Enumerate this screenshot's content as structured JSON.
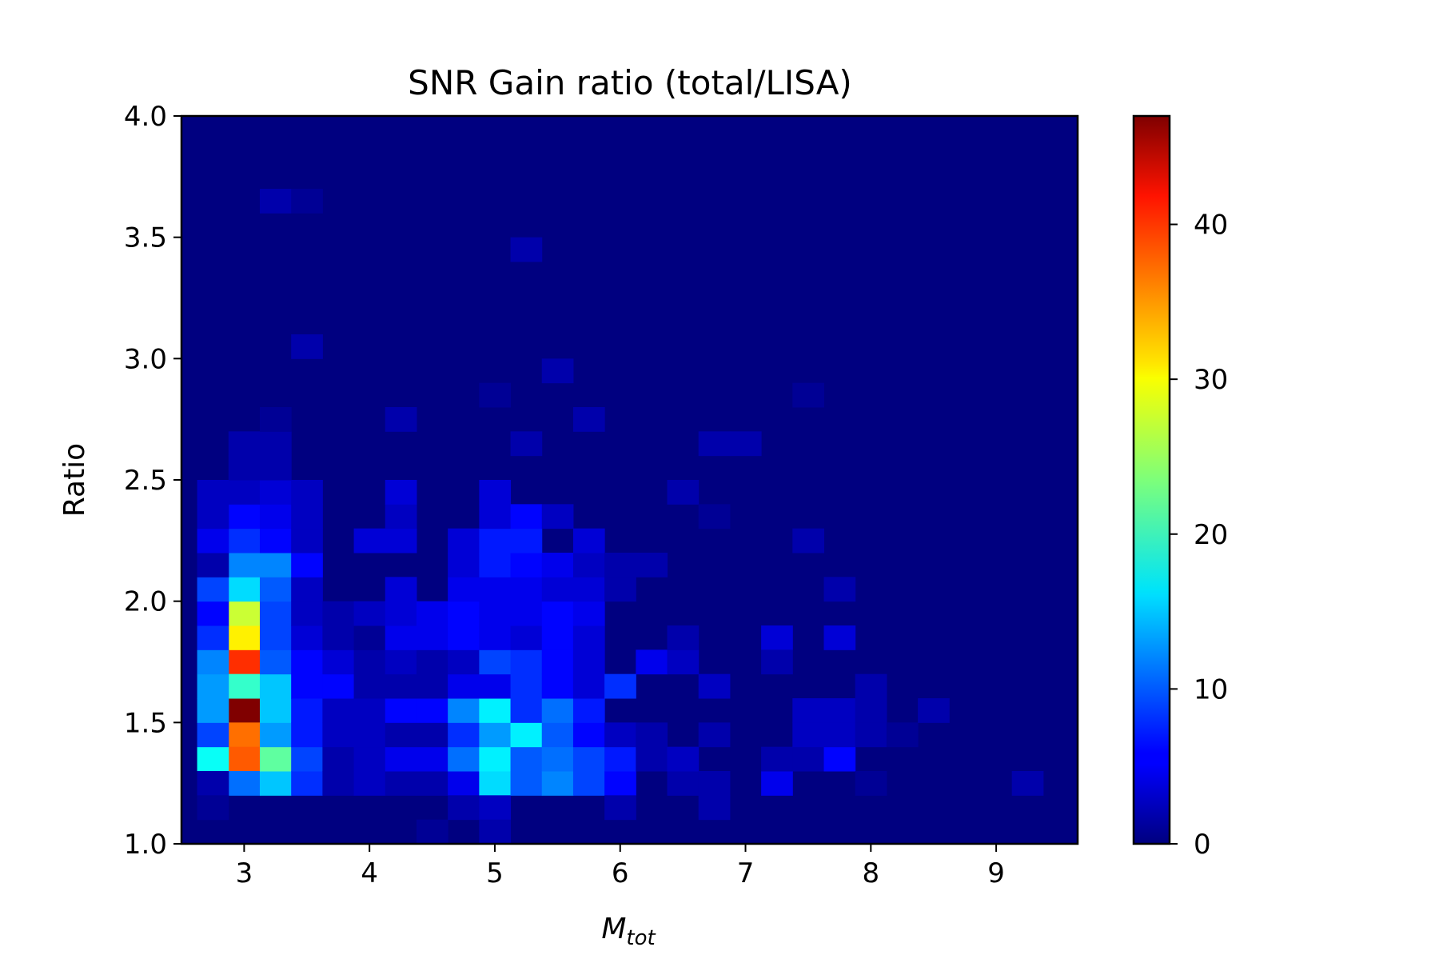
{
  "chart_data": {
    "type": "heatmap",
    "title": "SNR Gain ratio (total/LISA)",
    "xlabel_main": "M",
    "xlabel_sub": "tot",
    "ylabel": "Ratio",
    "xlim": [
      2.5,
      9.65
    ],
    "ylim": [
      1.0,
      4.0
    ],
    "x_ticks": [
      3,
      4,
      5,
      6,
      7,
      8,
      9
    ],
    "y_ticks": [
      "1.0",
      "1.5",
      "2.0",
      "2.5",
      "3.0",
      "3.5",
      "4.0"
    ],
    "colorbar": {
      "range": [
        0,
        47
      ],
      "ticks": [
        0,
        10,
        20,
        30,
        40
      ],
      "colormap": "jet"
    },
    "grid": false,
    "bins": {
      "x_start": 2.5,
      "x_step": 0.25,
      "y_start": 1.0,
      "y_step": 0.1,
      "nx": 29,
      "ny": 30
    },
    "cells": [
      [
        3.0,
        1.55,
        47
      ],
      [
        3.0,
        1.75,
        39
      ],
      [
        3.0,
        1.45,
        36
      ],
      [
        3.0,
        1.35,
        37
      ],
      [
        3.0,
        1.85,
        30
      ],
      [
        3.0,
        1.95,
        27
      ],
      [
        3.0,
        1.65,
        20
      ],
      [
        3.0,
        2.05,
        16
      ],
      [
        3.0,
        2.15,
        12
      ],
      [
        3.0,
        2.25,
        8
      ],
      [
        3.0,
        2.35,
        6
      ],
      [
        3.0,
        2.45,
        3
      ],
      [
        3.0,
        1.25,
        11
      ],
      [
        3.0,
        2.55,
        2
      ],
      [
        3.0,
        2.65,
        2
      ],
      [
        2.75,
        1.35,
        18
      ],
      [
        2.75,
        1.45,
        9
      ],
      [
        2.75,
        1.55,
        13
      ],
      [
        2.75,
        1.65,
        13
      ],
      [
        2.75,
        1.75,
        12
      ],
      [
        2.75,
        1.85,
        8
      ],
      [
        2.75,
        1.95,
        6
      ],
      [
        2.75,
        2.05,
        9
      ],
      [
        2.75,
        2.15,
        2
      ],
      [
        2.75,
        2.25,
        5
      ],
      [
        2.75,
        2.35,
        3
      ],
      [
        2.75,
        2.45,
        3
      ],
      [
        2.75,
        1.25,
        2
      ],
      [
        2.75,
        1.15,
        1
      ],
      [
        3.25,
        1.25,
        15
      ],
      [
        3.25,
        1.35,
        22
      ],
      [
        3.25,
        1.45,
        13
      ],
      [
        3.25,
        1.55,
        15
      ],
      [
        3.25,
        1.65,
        15
      ],
      [
        3.25,
        1.75,
        10
      ],
      [
        3.25,
        1.85,
        9
      ],
      [
        3.25,
        1.95,
        9
      ],
      [
        3.25,
        2.05,
        10
      ],
      [
        3.25,
        2.15,
        12
      ],
      [
        3.25,
        2.25,
        6
      ],
      [
        3.25,
        2.35,
        5
      ],
      [
        3.25,
        2.45,
        4
      ],
      [
        3.25,
        2.55,
        2
      ],
      [
        3.25,
        2.65,
        2
      ],
      [
        3.25,
        2.75,
        1
      ],
      [
        3.5,
        1.25,
        8
      ],
      [
        3.5,
        1.35,
        9
      ],
      [
        3.5,
        1.45,
        7
      ],
      [
        3.5,
        1.55,
        7
      ],
      [
        3.5,
        1.65,
        6
      ],
      [
        3.5,
        1.75,
        6
      ],
      [
        3.5,
        1.85,
        4
      ],
      [
        3.5,
        1.95,
        3
      ],
      [
        3.5,
        2.05,
        3
      ],
      [
        3.5,
        2.15,
        6
      ],
      [
        3.5,
        2.25,
        3
      ],
      [
        3.5,
        2.35,
        3
      ],
      [
        3.5,
        2.45,
        3
      ],
      [
        3.75,
        1.25,
        2
      ],
      [
        3.75,
        1.35,
        2
      ],
      [
        3.75,
        1.45,
        3
      ],
      [
        3.75,
        1.55,
        3
      ],
      [
        3.75,
        1.65,
        6
      ],
      [
        3.75,
        1.75,
        4
      ],
      [
        3.75,
        1.85,
        2
      ],
      [
        3.75,
        1.95,
        2
      ],
      [
        4.0,
        1.25,
        3
      ],
      [
        4.0,
        1.35,
        3
      ],
      [
        4.0,
        1.45,
        3
      ],
      [
        4.0,
        1.55,
        3
      ],
      [
        4.0,
        1.65,
        2
      ],
      [
        4.0,
        1.75,
        2
      ],
      [
        4.0,
        1.85,
        1
      ],
      [
        4.0,
        1.95,
        3
      ],
      [
        4.0,
        2.25,
        4
      ],
      [
        4.25,
        1.25,
        2
      ],
      [
        4.25,
        1.35,
        5
      ],
      [
        4.25,
        1.45,
        2
      ],
      [
        4.25,
        1.55,
        6
      ],
      [
        4.25,
        1.65,
        2
      ],
      [
        4.25,
        1.75,
        3
      ],
      [
        4.25,
        1.85,
        5
      ],
      [
        4.25,
        1.95,
        4
      ],
      [
        4.25,
        2.05,
        4
      ],
      [
        4.25,
        2.25,
        4
      ],
      [
        4.25,
        2.35,
        3
      ],
      [
        4.25,
        2.45,
        4
      ],
      [
        4.5,
        1.25,
        2
      ],
      [
        4.5,
        1.35,
        5
      ],
      [
        4.5,
        1.45,
        2
      ],
      [
        4.5,
        1.55,
        6
      ],
      [
        4.5,
        1.65,
        2
      ],
      [
        4.5,
        1.75,
        2
      ],
      [
        4.5,
        1.85,
        5
      ],
      [
        4.5,
        1.95,
        5
      ],
      [
        4.5,
        1.05,
        1
      ],
      [
        4.75,
        1.25,
        5
      ],
      [
        4.75,
        1.35,
        11
      ],
      [
        4.75,
        1.45,
        8
      ],
      [
        4.75,
        1.55,
        12
      ],
      [
        4.75,
        1.65,
        5
      ],
      [
        4.75,
        1.75,
        3
      ],
      [
        4.75,
        1.85,
        6
      ],
      [
        4.75,
        1.95,
        6
      ],
      [
        4.75,
        2.05,
        5
      ],
      [
        4.75,
        2.15,
        4
      ],
      [
        4.75,
        2.25,
        4
      ],
      [
        4.75,
        1.15,
        2
      ],
      [
        5.0,
        1.25,
        16
      ],
      [
        5.0,
        1.35,
        17
      ],
      [
        5.0,
        1.45,
        13
      ],
      [
        5.0,
        1.55,
        17
      ],
      [
        5.0,
        1.65,
        5
      ],
      [
        5.0,
        1.75,
        9
      ],
      [
        5.0,
        1.85,
        5
      ],
      [
        5.0,
        1.95,
        5
      ],
      [
        5.0,
        2.05,
        5
      ],
      [
        5.0,
        2.15,
        7
      ],
      [
        5.0,
        2.25,
        7
      ],
      [
        5.0,
        2.35,
        4
      ],
      [
        5.0,
        2.45,
        4
      ],
      [
        5.0,
        1.15,
        3
      ],
      [
        5.0,
        1.05,
        2
      ],
      [
        5.25,
        1.25,
        10
      ],
      [
        5.25,
        1.35,
        10
      ],
      [
        5.25,
        1.45,
        17
      ],
      [
        5.25,
        1.55,
        8
      ],
      [
        5.25,
        1.65,
        8
      ],
      [
        5.25,
        1.75,
        8
      ],
      [
        5.25,
        1.85,
        4
      ],
      [
        5.25,
        1.95,
        5
      ],
      [
        5.25,
        2.05,
        5
      ],
      [
        5.25,
        2.15,
        6
      ],
      [
        5.25,
        2.25,
        7
      ],
      [
        5.25,
        2.35,
        6
      ],
      [
        5.25,
        3.45,
        2
      ],
      [
        5.25,
        2.65,
        2
      ],
      [
        5.5,
        1.25,
        12
      ],
      [
        5.5,
        1.35,
        11
      ],
      [
        5.5,
        1.45,
        10
      ],
      [
        5.5,
        1.55,
        11
      ],
      [
        5.5,
        1.65,
        6
      ],
      [
        5.5,
        1.75,
        6
      ],
      [
        5.5,
        1.85,
        6
      ],
      [
        5.5,
        1.95,
        6
      ],
      [
        5.5,
        2.05,
        4
      ],
      [
        5.5,
        2.15,
        5
      ],
      [
        5.5,
        2.35,
        3
      ],
      [
        5.75,
        1.25,
        9
      ],
      [
        5.75,
        1.35,
        9
      ],
      [
        5.75,
        1.45,
        6
      ],
      [
        5.75,
        1.55,
        7
      ],
      [
        5.75,
        1.65,
        4
      ],
      [
        5.75,
        1.75,
        4
      ],
      [
        5.75,
        1.85,
        4
      ],
      [
        5.75,
        1.95,
        5
      ],
      [
        5.75,
        2.05,
        4
      ],
      [
        5.75,
        2.15,
        3
      ],
      [
        5.75,
        2.25,
        4
      ],
      [
        6.0,
        1.25,
        6
      ],
      [
        6.0,
        1.35,
        7
      ],
      [
        6.0,
        1.45,
        3
      ],
      [
        6.0,
        1.65,
        8
      ],
      [
        6.0,
        2.05,
        2
      ],
      [
        6.0,
        2.15,
        2
      ],
      [
        6.0,
        1.15,
        2
      ],
      [
        6.25,
        1.35,
        2
      ],
      [
        6.25,
        1.45,
        2
      ],
      [
        6.25,
        1.75,
        5
      ],
      [
        6.25,
        2.15,
        2
      ],
      [
        6.5,
        1.25,
        2
      ],
      [
        6.5,
        1.35,
        3
      ],
      [
        6.5,
        1.75,
        3
      ],
      [
        6.5,
        1.85,
        2
      ],
      [
        6.5,
        2.45,
        2
      ],
      [
        6.75,
        1.65,
        3
      ],
      [
        6.75,
        1.45,
        2
      ],
      [
        6.75,
        1.25,
        2
      ],
      [
        6.75,
        1.15,
        2
      ],
      [
        6.75,
        2.35,
        1
      ],
      [
        7.25,
        1.25,
        5
      ],
      [
        7.25,
        1.85,
        4
      ],
      [
        7.25,
        1.75,
        2
      ],
      [
        7.25,
        1.35,
        2
      ],
      [
        7.5,
        1.35,
        2
      ],
      [
        7.5,
        1.55,
        3
      ],
      [
        7.5,
        1.45,
        3
      ],
      [
        7.5,
        2.25,
        2
      ],
      [
        7.5,
        2.85,
        1
      ],
      [
        7.75,
        1.35,
        6
      ],
      [
        7.75,
        1.85,
        4
      ],
      [
        7.75,
        1.55,
        3
      ],
      [
        7.75,
        1.45,
        3
      ],
      [
        7.75,
        2.05,
        2
      ],
      [
        8.0,
        1.45,
        2
      ],
      [
        8.0,
        1.55,
        2
      ],
      [
        8.0,
        1.65,
        2
      ],
      [
        8.0,
        1.25,
        1
      ],
      [
        8.25,
        1.45,
        1
      ],
      [
        8.5,
        1.55,
        2
      ],
      [
        9.25,
        1.25,
        2
      ],
      [
        3.25,
        3.65,
        2
      ],
      [
        3.5,
        3.65,
        1
      ],
      [
        3.5,
        3.05,
        2
      ],
      [
        5.5,
        2.95,
        2
      ],
      [
        4.25,
        2.75,
        2
      ],
      [
        5.0,
        2.85,
        1
      ],
      [
        5.75,
        2.75,
        2
      ],
      [
        6.75,
        2.65,
        2
      ],
      [
        7.0,
        2.65,
        2
      ]
    ]
  }
}
